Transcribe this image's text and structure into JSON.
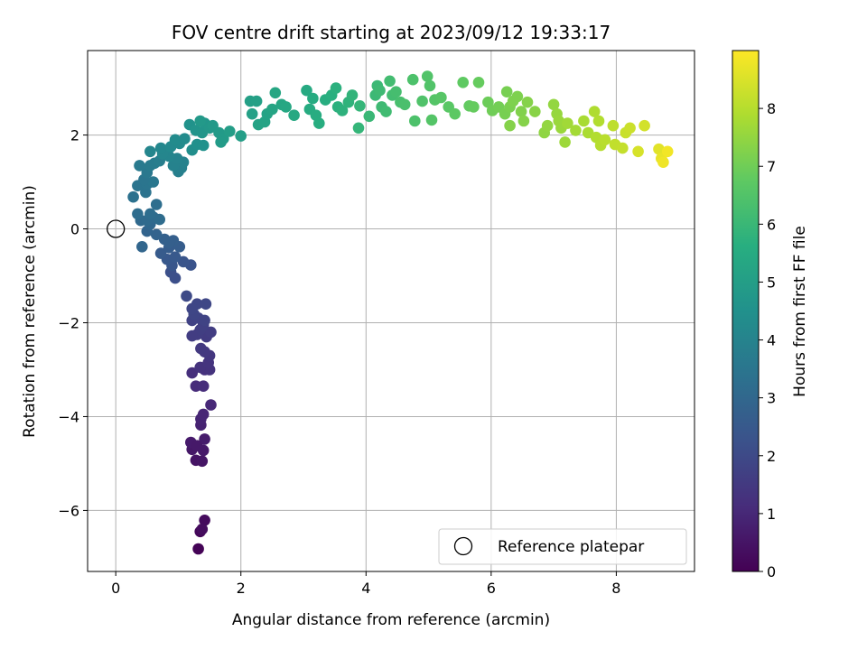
{
  "chart_data": {
    "type": "scatter",
    "title": "FOV centre drift starting at 2023/09/12 19:33:17",
    "xlabel": "Angular distance from reference (arcmin)",
    "ylabel": "Rotation from reference (arcmin)",
    "xlim": [
      -0.45,
      9.25
    ],
    "ylim": [
      -7.3,
      3.8
    ],
    "xticks": [
      0,
      2,
      4,
      6,
      8
    ],
    "yticks": [
      -6,
      -4,
      -2,
      0,
      2
    ],
    "xtick_labels": [
      "0",
      "2",
      "4",
      "6",
      "8"
    ],
    "ytick_labels": [
      "−6",
      "−4",
      "−2",
      "0",
      "2"
    ],
    "grid": true,
    "legend": {
      "placement": "lower-right",
      "entries": [
        "Reference platepar"
      ]
    },
    "reference_point": {
      "x": 0,
      "y": 0
    },
    "colorbar": {
      "label": "Hours from first FF file",
      "colormap": "viridis",
      "range": [
        0,
        9
      ],
      "ticks": [
        0,
        1,
        2,
        3,
        4,
        5,
        6,
        7,
        8
      ],
      "tick_labels": [
        "0",
        "1",
        "2",
        "3",
        "4",
        "5",
        "6",
        "7",
        "8"
      ]
    },
    "points": [
      [
        1.32,
        -6.82,
        0.05
      ],
      [
        1.35,
        -6.45,
        0.15
      ],
      [
        1.42,
        -6.21,
        0.25
      ],
      [
        1.38,
        -6.4,
        0.3
      ],
      [
        1.28,
        -4.93,
        0.45
      ],
      [
        1.38,
        -4.95,
        0.5
      ],
      [
        1.22,
        -4.7,
        0.55
      ],
      [
        1.4,
        -4.72,
        0.6
      ],
      [
        1.2,
        -4.55,
        0.65
      ],
      [
        1.42,
        -4.48,
        0.7
      ],
      [
        1.3,
        -4.62,
        0.62
      ],
      [
        1.36,
        -4.18,
        0.85
      ],
      [
        1.36,
        -4.05,
        0.9
      ],
      [
        1.4,
        -3.95,
        0.95
      ],
      [
        1.52,
        -3.75,
        1.0
      ],
      [
        1.28,
        -3.35,
        1.1
      ],
      [
        1.4,
        -3.35,
        1.15
      ],
      [
        1.22,
        -3.07,
        1.2
      ],
      [
        1.42,
        -3.0,
        1.25
      ],
      [
        1.5,
        -3.0,
        1.3
      ],
      [
        1.35,
        -2.95,
        1.3
      ],
      [
        1.48,
        -2.85,
        1.35
      ],
      [
        1.5,
        -2.7,
        1.4
      ],
      [
        1.42,
        -2.62,
        1.45
      ],
      [
        1.36,
        -2.55,
        1.5
      ],
      [
        1.45,
        -2.3,
        1.55
      ],
      [
        1.3,
        -2.25,
        1.6
      ],
      [
        1.52,
        -2.2,
        1.62
      ],
      [
        1.35,
        -2.15,
        1.65
      ],
      [
        1.22,
        -2.28,
        1.6
      ],
      [
        1.4,
        -2.05,
        1.7
      ],
      [
        1.22,
        -1.95,
        1.75
      ],
      [
        1.32,
        -1.9,
        1.8
      ],
      [
        1.42,
        -1.95,
        1.78
      ],
      [
        1.25,
        -1.82,
        1.85
      ],
      [
        1.3,
        -1.6,
        1.9
      ],
      [
        1.44,
        -1.6,
        1.92
      ],
      [
        1.22,
        -1.7,
        1.88
      ],
      [
        1.13,
        -1.43,
        2.0
      ],
      [
        0.95,
        -1.05,
        2.15
      ],
      [
        0.88,
        -0.92,
        2.2
      ],
      [
        1.2,
        -0.77,
        2.3
      ],
      [
        1.08,
        -0.7,
        2.35
      ],
      [
        0.9,
        -0.78,
        2.4
      ],
      [
        0.82,
        -0.65,
        2.45
      ],
      [
        0.95,
        -0.6,
        2.5
      ],
      [
        0.72,
        -0.52,
        2.55
      ],
      [
        0.85,
        -0.4,
        2.6
      ],
      [
        1.02,
        -0.38,
        2.65
      ],
      [
        0.92,
        -0.25,
        2.7
      ],
      [
        0.85,
        -0.3,
        2.72
      ],
      [
        0.78,
        -0.22,
        2.75
      ],
      [
        0.65,
        -0.12,
        2.85
      ],
      [
        0.5,
        -0.05,
        2.9
      ],
      [
        0.42,
        -0.38,
        2.95
      ],
      [
        0.55,
        0.1,
        3.0
      ],
      [
        0.4,
        0.18,
        3.05
      ],
      [
        0.5,
        0.18,
        3.1
      ],
      [
        0.6,
        0.25,
        3.1
      ],
      [
        0.7,
        0.2,
        3.15
      ],
      [
        0.35,
        0.32,
        3.2
      ],
      [
        0.55,
        0.32,
        3.2
      ],
      [
        0.65,
        0.52,
        3.25
      ],
      [
        0.28,
        0.68,
        3.35
      ],
      [
        0.48,
        0.78,
        3.4
      ],
      [
        0.35,
        0.92,
        3.45
      ],
      [
        0.5,
        0.95,
        3.5
      ],
      [
        0.6,
        1.0,
        3.55
      ],
      [
        0.45,
        1.05,
        3.5
      ],
      [
        0.5,
        1.2,
        3.6
      ],
      [
        0.38,
        1.35,
        3.65
      ],
      [
        0.55,
        1.35,
        3.7
      ],
      [
        0.62,
        1.4,
        3.75
      ],
      [
        0.7,
        1.45,
        3.8
      ],
      [
        1.0,
        1.22,
        3.85
      ],
      [
        1.05,
        1.3,
        3.9
      ],
      [
        0.92,
        1.35,
        3.95
      ],
      [
        1.08,
        1.42,
        3.95
      ],
      [
        0.98,
        1.5,
        4.0
      ],
      [
        0.85,
        1.55,
        4.05
      ],
      [
        0.75,
        1.6,
        4.1
      ],
      [
        0.55,
        1.65,
        4.1
      ],
      [
        0.72,
        1.72,
        4.15
      ],
      [
        0.88,
        1.75,
        4.2
      ],
      [
        1.02,
        1.82,
        4.25
      ],
      [
        0.95,
        1.9,
        4.3
      ],
      [
        1.1,
        1.92,
        4.3
      ],
      [
        1.22,
        1.68,
        4.4
      ],
      [
        1.3,
        1.8,
        4.45
      ],
      [
        1.4,
        1.78,
        4.5
      ],
      [
        1.18,
        2.22,
        4.55
      ],
      [
        1.28,
        2.1,
        4.6
      ],
      [
        1.38,
        2.05,
        4.65
      ],
      [
        1.42,
        2.25,
        4.7
      ],
      [
        1.5,
        2.15,
        4.75
      ],
      [
        1.55,
        2.2,
        4.8
      ],
      [
        1.35,
        2.3,
        4.8
      ],
      [
        1.65,
        2.05,
        4.85
      ],
      [
        1.72,
        1.92,
        4.9
      ],
      [
        1.82,
        2.08,
        4.95
      ],
      [
        1.68,
        1.85,
        4.9
      ],
      [
        2.0,
        1.98,
        5.0
      ],
      [
        2.15,
        2.72,
        5.05
      ],
      [
        2.25,
        2.72,
        5.1
      ],
      [
        2.18,
        2.45,
        5.1
      ],
      [
        2.28,
        2.22,
        5.15
      ],
      [
        2.38,
        2.28,
        5.2
      ],
      [
        2.42,
        2.45,
        5.2
      ],
      [
        2.5,
        2.55,
        5.25
      ],
      [
        2.55,
        2.9,
        5.3
      ],
      [
        2.65,
        2.65,
        5.3
      ],
      [
        2.72,
        2.6,
        5.35
      ],
      [
        2.85,
        2.42,
        5.4
      ],
      [
        3.05,
        2.95,
        5.45
      ],
      [
        3.15,
        2.78,
        5.5
      ],
      [
        3.1,
        2.55,
        5.5
      ],
      [
        3.2,
        2.42,
        5.55
      ],
      [
        3.25,
        2.25,
        5.6
      ],
      [
        3.35,
        2.75,
        5.6
      ],
      [
        3.45,
        2.85,
        5.65
      ],
      [
        3.52,
        3.0,
        5.7
      ],
      [
        3.55,
        2.6,
        5.7
      ],
      [
        3.62,
        2.52,
        5.75
      ],
      [
        3.72,
        2.7,
        5.8
      ],
      [
        3.78,
        2.85,
        5.85
      ],
      [
        3.9,
        2.62,
        5.9
      ],
      [
        3.88,
        2.15,
        5.9
      ],
      [
        4.05,
        2.4,
        6.0
      ],
      [
        4.15,
        2.85,
        6.05
      ],
      [
        4.18,
        3.05,
        6.05
      ],
      [
        4.22,
        2.95,
        6.1
      ],
      [
        4.25,
        2.6,
        6.1
      ],
      [
        4.32,
        2.5,
        6.15
      ],
      [
        4.38,
        3.15,
        6.2
      ],
      [
        4.42,
        2.85,
        6.2
      ],
      [
        4.48,
        2.92,
        6.25
      ],
      [
        4.55,
        2.7,
        6.3
      ],
      [
        4.62,
        2.65,
        6.35
      ],
      [
        4.75,
        3.18,
        6.4
      ],
      [
        4.78,
        2.3,
        6.4
      ],
      [
        4.9,
        2.72,
        6.45
      ],
      [
        4.98,
        3.25,
        6.5
      ],
      [
        5.02,
        3.05,
        6.5
      ],
      [
        5.05,
        2.32,
        6.55
      ],
      [
        5.1,
        2.75,
        6.55
      ],
      [
        5.2,
        2.8,
        6.6
      ],
      [
        5.32,
        2.6,
        6.65
      ],
      [
        5.42,
        2.45,
        6.7
      ],
      [
        5.55,
        3.12,
        6.75
      ],
      [
        5.65,
        2.62,
        6.8
      ],
      [
        5.72,
        2.6,
        6.85
      ],
      [
        5.8,
        3.12,
        6.85
      ],
      [
        5.95,
        2.7,
        6.95
      ],
      [
        6.02,
        2.52,
        7.0
      ],
      [
        6.12,
        2.6,
        7.05
      ],
      [
        6.22,
        2.45,
        7.1
      ],
      [
        6.25,
        2.92,
        7.1
      ],
      [
        6.3,
        2.6,
        7.15
      ],
      [
        6.35,
        2.72,
        7.2
      ],
      [
        6.42,
        2.82,
        7.2
      ],
      [
        6.48,
        2.5,
        7.25
      ],
      [
        6.52,
        2.3,
        7.3
      ],
      [
        6.58,
        2.7,
        7.3
      ],
      [
        6.3,
        2.2,
        7.3
      ],
      [
        6.7,
        2.5,
        7.35
      ],
      [
        6.85,
        2.05,
        7.45
      ],
      [
        6.9,
        2.2,
        7.5
      ],
      [
        7.0,
        2.65,
        7.5
      ],
      [
        7.05,
        2.45,
        7.55
      ],
      [
        7.08,
        2.3,
        7.6
      ],
      [
        7.12,
        2.15,
        7.6
      ],
      [
        7.18,
        1.85,
        7.65
      ],
      [
        7.22,
        2.25,
        7.7
      ],
      [
        7.35,
        2.1,
        7.75
      ],
      [
        7.48,
        2.3,
        7.8
      ],
      [
        7.55,
        2.05,
        7.85
      ],
      [
        7.65,
        2.5,
        7.9
      ],
      [
        7.72,
        2.3,
        7.95
      ],
      [
        7.68,
        1.95,
        7.95
      ],
      [
        7.75,
        1.78,
        8.0
      ],
      [
        7.82,
        1.9,
        8.05
      ],
      [
        7.95,
        2.2,
        8.1
      ],
      [
        7.98,
        1.8,
        8.15
      ],
      [
        8.1,
        1.72,
        8.2
      ],
      [
        8.15,
        2.05,
        8.25
      ],
      [
        8.22,
        2.15,
        8.3
      ],
      [
        8.45,
        2.2,
        8.4
      ],
      [
        8.35,
        1.65,
        8.45
      ],
      [
        8.68,
        1.7,
        8.6
      ],
      [
        8.72,
        1.5,
        8.7
      ],
      [
        8.75,
        1.42,
        8.8
      ],
      [
        8.82,
        1.65,
        8.85
      ]
    ]
  }
}
